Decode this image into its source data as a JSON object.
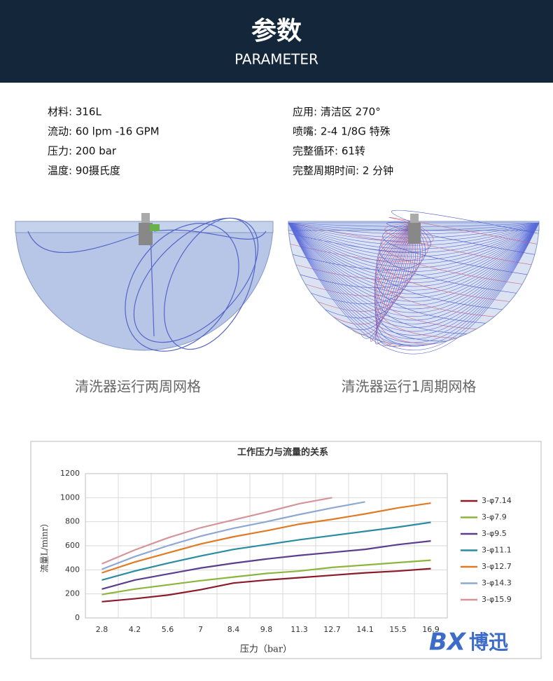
{
  "header": {
    "title": "参数",
    "subtitle": "PARAMETER"
  },
  "specs": {
    "left": [
      "材料: 316L",
      "流动: 60 lpm -16 GPM",
      "压力: 200 bar",
      "温度: 90摄氏度"
    ],
    "right": [
      "应用: 清洁区 270°",
      "喷嘴: 2-4 1/8G 特殊",
      "完整循环: 61转",
      "完整周期时间: 2 分钟"
    ]
  },
  "diagrams": {
    "captions": [
      "清洗器运行两周网格",
      "清洗器运行1周期网格"
    ]
  },
  "chart_data": {
    "type": "line",
    "title": "工作压力与流量的关系",
    "x_label": "压力（bar）",
    "y_label": "流量L/minr）",
    "categories": [
      "2.8",
      "4.2",
      "5.6",
      "7",
      "8.4",
      "9.8",
      "11.3",
      "12.7",
      "14.1",
      "15.5",
      "16.9"
    ],
    "ylim": [
      0,
      1200
    ],
    "yticks": [
      0,
      200,
      400,
      600,
      800,
      1000,
      1200
    ],
    "grid": true,
    "legend": "right",
    "series": [
      {
        "name": "3-φ7.14",
        "color": "#8b1a2a",
        "values": [
          135,
          160,
          190,
          235,
          290,
          315,
          335,
          355,
          375,
          390,
          410
        ]
      },
      {
        "name": "3-φ7.9",
        "color": "#8db53c",
        "values": [
          195,
          240,
          275,
          310,
          340,
          370,
          390,
          420,
          440,
          460,
          480
        ]
      },
      {
        "name": "3-φ9.5",
        "color": "#5c3d8f",
        "values": [
          240,
          315,
          365,
          415,
          455,
          490,
          520,
          545,
          570,
          610,
          640
        ]
      },
      {
        "name": "3-φ11.1",
        "color": "#2a8ca3",
        "values": [
          315,
          390,
          455,
          515,
          570,
          610,
          650,
          685,
          720,
          755,
          795
        ]
      },
      {
        "name": "3-φ12.7",
        "color": "#e07b25",
        "values": [
          375,
          465,
          540,
          615,
          675,
          725,
          780,
          820,
          865,
          915,
          955
        ]
      },
      {
        "name": "3-φ14.3",
        "color": "#8ea8d4",
        "values": [
          405,
          510,
          600,
          680,
          745,
          800,
          860,
          915,
          965,
          null,
          null
        ]
      },
      {
        "name": "3-φ15.9",
        "color": "#d4959a",
        "values": [
          450,
          565,
          665,
          750,
          815,
          880,
          950,
          1000,
          null,
          null,
          null
        ]
      }
    ]
  },
  "logo": {
    "mark": "BX",
    "name": "博迅"
  }
}
